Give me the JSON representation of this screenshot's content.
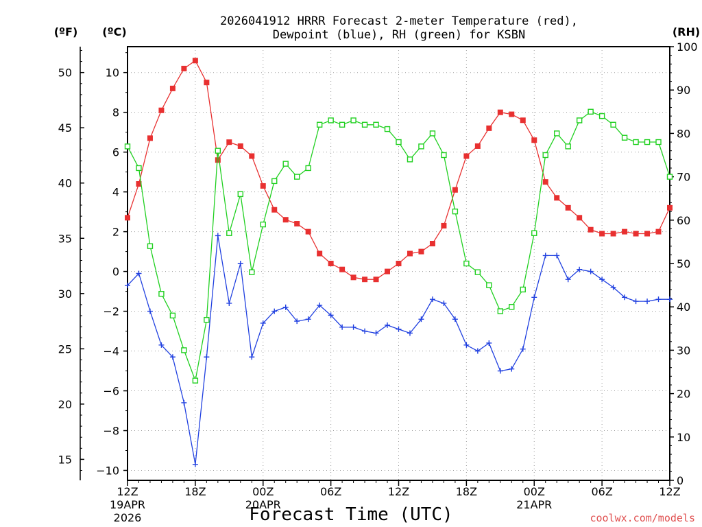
{
  "chart_data": {
    "type": "line",
    "title_line1": "2026041912 HRRR Forecast 2-meter Temperature (red),",
    "title_line2": "Dewpoint (blue), RH (green) for KSBN",
    "xlabel": "Forecast Time (UTC)",
    "unit_f": "(ºF)",
    "unit_c": "(ºC)",
    "unit_rh": "(RH)",
    "credit": "coolwx.com/models",
    "left_axis_c": {
      "ticks": [
        10,
        8,
        6,
        4,
        2,
        0,
        -2,
        -4,
        -6,
        -8,
        -10
      ],
      "range": [
        -10.5,
        11.3
      ]
    },
    "far_left_axis_f": {
      "ticks": [
        50,
        45,
        40,
        35,
        30,
        25,
        20,
        15
      ]
    },
    "right_axis_rh": {
      "ticks": [
        100,
        90,
        80,
        70,
        60,
        50,
        40,
        30,
        20,
        10,
        0
      ],
      "range": [
        0,
        100
      ]
    },
    "x_ticks": [
      {
        "hour": 0,
        "label": "12Z",
        "line2": "19APR",
        "line3": "2026"
      },
      {
        "hour": 6,
        "label": "18Z"
      },
      {
        "hour": 12,
        "label": "00Z",
        "line2": "20APR"
      },
      {
        "hour": 18,
        "label": "06Z"
      },
      {
        "hour": 24,
        "label": "12Z"
      },
      {
        "hour": 30,
        "label": "18Z"
      },
      {
        "hour": 36,
        "label": "00Z",
        "line2": "21APR"
      },
      {
        "hour": 42,
        "label": "06Z"
      },
      {
        "hour": 48,
        "label": "12Z"
      }
    ],
    "x_range": [
      0,
      48
    ],
    "grid": true,
    "series": [
      {
        "name": "Temperature",
        "axis": "c",
        "color": "#e83030",
        "marker": "filled-square",
        "values": [
          2.7,
          4.4,
          6.7,
          8.1,
          9.2,
          10.2,
          10.6,
          9.5,
          5.6,
          6.5,
          6.3,
          5.8,
          4.3,
          3.1,
          2.6,
          2.4,
          2.0,
          0.9,
          0.4,
          0.1,
          -0.3,
          -0.4,
          -0.4,
          0.0,
          0.4,
          0.9,
          1.0,
          1.4,
          2.3,
          4.1,
          5.8,
          6.3,
          7.2,
          8.0,
          7.9,
          7.6,
          6.6,
          4.5,
          3.7,
          3.2,
          2.7,
          2.1,
          1.9,
          1.9,
          2.0,
          1.9,
          1.9,
          2.0,
          3.2
        ]
      },
      {
        "name": "Dewpoint",
        "axis": "c",
        "color": "#2040e0",
        "marker": "plus",
        "values": [
          -0.7,
          -0.1,
          -2.0,
          -3.7,
          -4.3,
          -6.6,
          -9.7,
          -4.3,
          1.8,
          -1.6,
          0.4,
          -4.3,
          -2.6,
          -2.0,
          -1.8,
          -2.5,
          -2.4,
          -1.7,
          -2.2,
          -2.8,
          -2.8,
          -3.0,
          -3.1,
          -2.7,
          -2.9,
          -3.1,
          -2.4,
          -1.4,
          -1.6,
          -2.4,
          -3.7,
          -4.0,
          -3.6,
          -5.0,
          -4.9,
          -3.9,
          -1.3,
          0.8,
          0.8,
          -0.4,
          0.1,
          0.0,
          -0.4,
          -0.8,
          -1.3,
          -1.5,
          -1.5,
          -1.4,
          -1.4
        ]
      },
      {
        "name": "RH",
        "axis": "rh",
        "color": "#20d020",
        "marker": "open-square",
        "values": [
          77,
          72,
          54,
          43,
          38,
          30,
          23,
          37,
          76,
          57,
          66,
          48,
          59,
          69,
          73,
          70,
          72,
          82,
          83,
          82,
          83,
          82,
          82,
          81,
          78,
          74,
          77,
          80,
          75,
          62,
          50,
          48,
          45,
          39,
          40,
          44,
          57,
          75,
          80,
          77,
          83,
          85,
          84,
          82,
          79,
          78,
          78,
          78,
          70
        ]
      }
    ]
  }
}
